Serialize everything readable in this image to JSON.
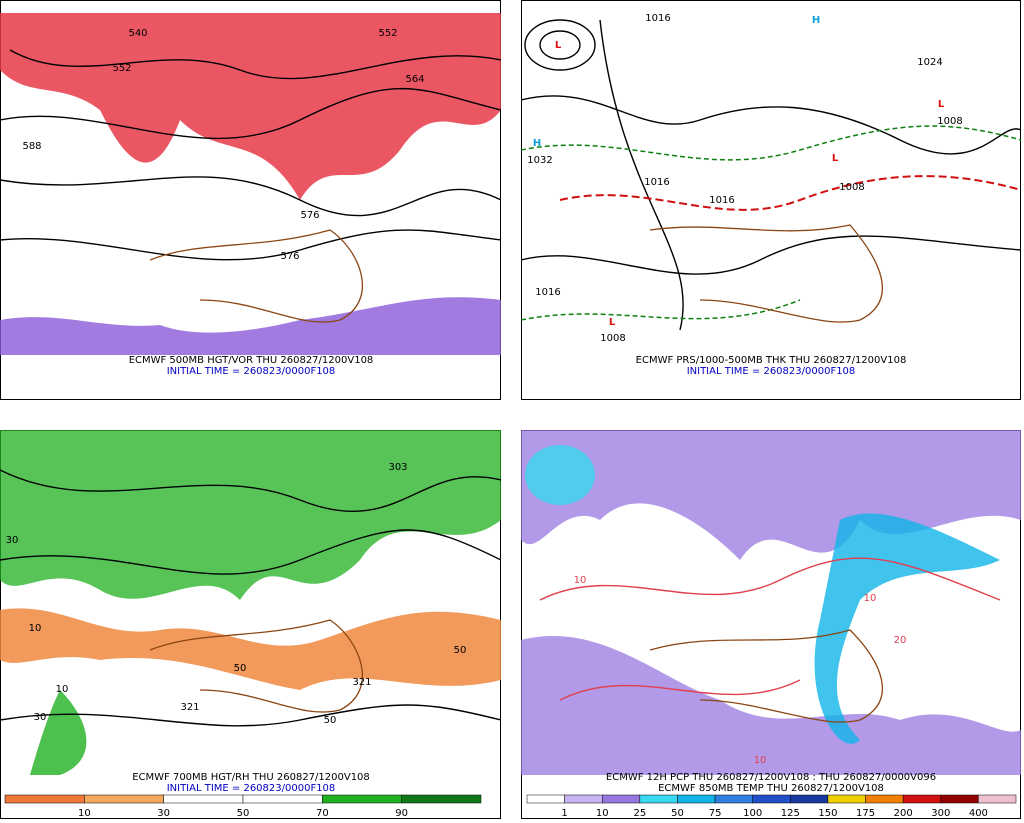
{
  "panels": [
    {
      "title": "ECMWF 500MB HGT/VOR THU 260827/1200V108",
      "initial_time": "INITIAL TIME = 260823/0000F108",
      "labels": [
        "540",
        "552",
        "552",
        "564",
        "588",
        "576",
        "576"
      ]
    },
    {
      "title": "ECMWF PRS/1000-500MB THK THU 260827/1200V108",
      "initial_time": "INITIAL TIME = 260823/0000F108",
      "labels": [
        "H",
        "1032",
        "L",
        "1016",
        "1016",
        "L",
        "1008",
        "1024",
        "L",
        "1008",
        "1016",
        "L",
        "1008",
        "1016",
        "H"
      ]
    },
    {
      "title": "ECMWF 700MB HGT/RH THU 260827/1200V108",
      "initial_time": "INITIAL TIME = 260823/0000F108",
      "labels": [
        "303",
        "321",
        "321",
        "10",
        "30",
        "50",
        "50",
        "50",
        "30",
        "10"
      ],
      "legend": {
        "labels": [
          10,
          30,
          50,
          70,
          90
        ],
        "colors": [
          "#f07838",
          "#f4a860",
          "#ffffff",
          "#ffffff",
          "#20b020",
          "#107818"
        ]
      }
    },
    {
      "title": "ECMWF 12H PCP THU 260827/1200V108 : THU 260827/0000V096",
      "subtitle": "ECMWF 850MB TEMP THU 260827/1200V108",
      "labels": [
        "10",
        "10",
        "10",
        "20"
      ],
      "legend": {
        "labels": [
          1,
          10,
          25,
          50,
          75,
          100,
          125,
          150,
          175,
          200,
          300,
          400
        ],
        "colors": [
          "#ffffff",
          "#c8b4f0",
          "#9878e0",
          "#38d8f0",
          "#10b4e8",
          "#3080e0",
          "#2050c8",
          "#1838a0",
          "#f0d000",
          "#f08000",
          "#d01010",
          "#900000",
          "#f0c0d0"
        ]
      }
    }
  ]
}
